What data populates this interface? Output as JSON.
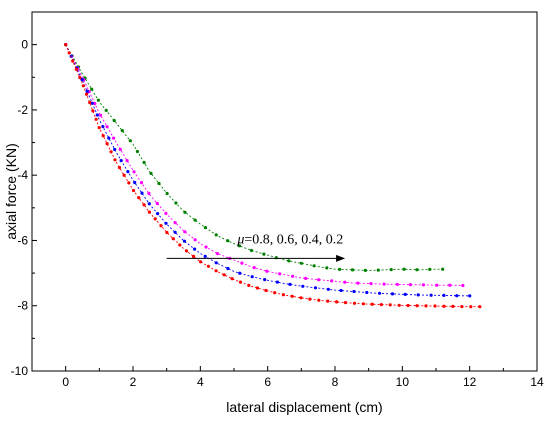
{
  "chart_data": {
    "type": "line",
    "title": "",
    "xlabel": "lateral displacement (cm)",
    "ylabel": "axial force (KN)",
    "xlim": [
      -1,
      14
    ],
    "ylim": [
      -10,
      1
    ],
    "xticks": [
      0,
      2,
      4,
      6,
      8,
      10,
      12,
      14
    ],
    "yticks": [
      0,
      -2,
      -4,
      -6,
      -8,
      -10
    ],
    "xtick_labels": [
      "0",
      "2",
      "4",
      "6",
      "8",
      "10",
      "12",
      "14"
    ],
    "ytick_labels": [
      "0",
      "-2",
      "-4",
      "-6",
      "-8",
      "-10"
    ],
    "grid": false,
    "annotation": {
      "symbol": "μ",
      "text": "=0.8, 0.6, 0.4, 0.2",
      "arrow_from": [
        3.0,
        -6.55
      ],
      "arrow_to": [
        8.3,
        -6.55
      ]
    },
    "series": [
      {
        "color": "#008000",
        "marker_count": 38,
        "x": [
          0,
          0.5,
          1,
          1.5,
          2,
          2.5,
          3,
          3.5,
          4,
          4.5,
          5,
          5.5,
          6,
          6.5,
          7,
          7.5,
          8,
          8.5,
          9,
          9.5,
          10,
          10.5,
          11,
          11.2
        ],
        "y": [
          0,
          -0.9,
          -1.75,
          -2.4,
          -3.05,
          -3.9,
          -4.55,
          -5.1,
          -5.5,
          -5.85,
          -6.1,
          -6.3,
          -6.45,
          -6.6,
          -6.7,
          -6.8,
          -6.88,
          -6.9,
          -6.92,
          -6.9,
          -6.88,
          -6.9,
          -6.88,
          -6.88
        ]
      },
      {
        "color": "#ff00ff",
        "marker_count": 40,
        "x": [
          0,
          0.5,
          1,
          1.5,
          2,
          2.5,
          3,
          3.5,
          4,
          4.5,
          5,
          5.5,
          6,
          6.5,
          7,
          7.5,
          8,
          8.5,
          9,
          9.5,
          10,
          10.5,
          11,
          11.5,
          11.8
        ],
        "y": [
          0,
          -1.0,
          -2.1,
          -3.0,
          -3.85,
          -4.6,
          -5.2,
          -5.7,
          -6.1,
          -6.4,
          -6.6,
          -6.8,
          -6.95,
          -7.05,
          -7.15,
          -7.2,
          -7.25,
          -7.3,
          -7.32,
          -7.34,
          -7.35,
          -7.36,
          -7.37,
          -7.37,
          -7.38
        ]
      },
      {
        "color": "#0000ff",
        "marker_count": 42,
        "x": [
          0,
          0.5,
          1,
          1.5,
          2,
          2.5,
          3,
          3.5,
          4,
          4.5,
          5,
          5.5,
          6,
          6.5,
          7,
          7.5,
          8,
          8.5,
          9,
          9.5,
          10,
          10.5,
          11,
          11.5,
          12
        ],
        "y": [
          0,
          -1.1,
          -2.3,
          -3.3,
          -4.15,
          -4.9,
          -5.5,
          -6.0,
          -6.4,
          -6.7,
          -6.95,
          -7.1,
          -7.22,
          -7.32,
          -7.4,
          -7.46,
          -7.52,
          -7.56,
          -7.6,
          -7.63,
          -7.65,
          -7.67,
          -7.68,
          -7.69,
          -7.7
        ]
      },
      {
        "color": "#ff0000",
        "marker_count": 62,
        "x": [
          0,
          0.5,
          1,
          1.5,
          2,
          2.5,
          3,
          3.5,
          4,
          4.5,
          5,
          5.5,
          6,
          6.5,
          7,
          7.5,
          8,
          8.5,
          9,
          9.5,
          10,
          10.5,
          11,
          11.5,
          12,
          12.3
        ],
        "y": [
          0,
          -1.2,
          -2.55,
          -3.6,
          -4.45,
          -5.15,
          -5.75,
          -6.25,
          -6.65,
          -6.95,
          -7.2,
          -7.4,
          -7.55,
          -7.67,
          -7.76,
          -7.83,
          -7.88,
          -7.92,
          -7.95,
          -7.97,
          -7.99,
          -8.0,
          -8.01,
          -8.02,
          -8.03,
          -8.03
        ]
      }
    ]
  }
}
